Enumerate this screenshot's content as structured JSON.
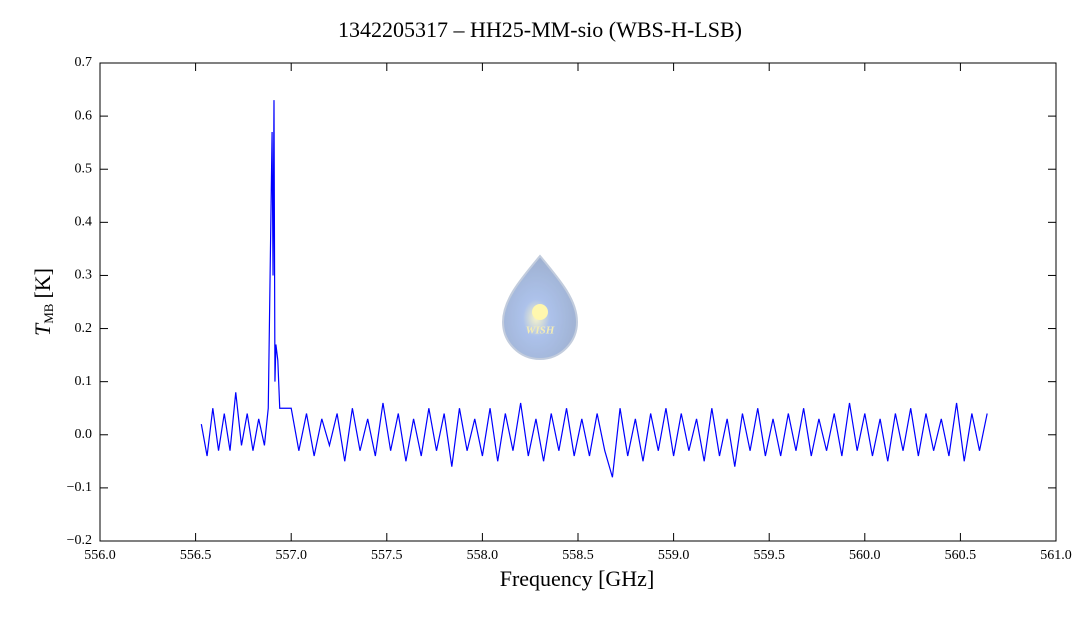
{
  "chart_data": {
    "type": "line",
    "title": "1342205317 – HH25-MM-sio (WBS-H-LSB)",
    "x_label": "Frequency [GHz]",
    "y_label": {
      "symbol": "T",
      "subscript": "MB",
      "unit": "[K]"
    },
    "logo_text": "WISH",
    "xlim": [
      556,
      561
    ],
    "xticks": [
      {
        "value": 556,
        "label": "556.0"
      },
      {
        "value": 556.5,
        "label": "556.5"
      },
      {
        "value": 557,
        "label": "557.0"
      },
      {
        "value": 557.5,
        "label": "557.5"
      },
      {
        "value": 558,
        "label": "558.0"
      },
      {
        "value": 558.5,
        "label": "558.5"
      },
      {
        "value": 559,
        "label": "559.0"
      },
      {
        "value": 559.5,
        "label": "559.5"
      },
      {
        "value": 560,
        "label": "560.0"
      },
      {
        "value": 560.5,
        "label": "560.5"
      },
      {
        "value": 561,
        "label": "561.0"
      }
    ],
    "ylim": [
      -0.2,
      0.7
    ],
    "yticks": [
      {
        "value": -0.2,
        "label": "−0.2"
      },
      {
        "value": -0.1,
        "label": "−0.1"
      },
      {
        "value": 0,
        "label": "0.0"
      },
      0.1,
      0.2,
      0.3,
      0.4,
      0.5,
      0.6,
      0.7
    ],
    "x": [
      556.53,
      556.56,
      556.59,
      556.62,
      556.65,
      556.68,
      556.71,
      556.74,
      556.77,
      556.8,
      556.83,
      556.86,
      556.88,
      556.9,
      556.905,
      556.91,
      556.915,
      556.92,
      556.93,
      556.94,
      557.0,
      557.04,
      557.08,
      557.12,
      557.16,
      557.2,
      557.24,
      557.28,
      557.32,
      557.36,
      557.4,
      557.44,
      557.48,
      557.52,
      557.56,
      557.6,
      557.64,
      557.68,
      557.72,
      557.76,
      557.8,
      557.84,
      557.88,
      557.92,
      557.96,
      558.0,
      558.04,
      558.08,
      558.12,
      558.16,
      558.2,
      558.24,
      558.28,
      558.32,
      558.36,
      558.4,
      558.44,
      558.48,
      558.52,
      558.56,
      558.6,
      558.64,
      558.68,
      558.72,
      558.76,
      558.8,
      558.84,
      558.88,
      558.92,
      558.96,
      559.0,
      559.04,
      559.08,
      559.12,
      559.16,
      559.2,
      559.24,
      559.28,
      559.32,
      559.36,
      559.4,
      559.44,
      559.48,
      559.52,
      559.56,
      559.6,
      559.64,
      559.68,
      559.72,
      559.76,
      559.8,
      559.84,
      559.88,
      559.92,
      559.96,
      560.0,
      560.04,
      560.08,
      560.12,
      560.16,
      560.2,
      560.24,
      560.28,
      560.32,
      560.36,
      560.4,
      560.44,
      560.48,
      560.52,
      560.56,
      560.6,
      560.64
    ],
    "series": [
      {
        "color": "#0000ff",
        "values": [
          0.02,
          -0.04,
          0.05,
          -0.03,
          0.04,
          -0.03,
          0.08,
          -0.02,
          0.04,
          -0.03,
          0.03,
          -0.02,
          0.05,
          0.57,
          0.3,
          0.63,
          0.1,
          0.17,
          0.14,
          0.05,
          0.05,
          -0.03,
          0.04,
          -0.04,
          0.03,
          -0.02,
          0.04,
          -0.05,
          0.05,
          -0.03,
          0.03,
          -0.04,
          0.06,
          -0.03,
          0.04,
          -0.05,
          0.03,
          -0.04,
          0.05,
          -0.03,
          0.04,
          -0.06,
          0.05,
          -0.03,
          0.03,
          -0.04,
          0.05,
          -0.05,
          0.04,
          -0.03,
          0.06,
          -0.04,
          0.03,
          -0.05,
          0.04,
          -0.03,
          0.05,
          -0.04,
          0.03,
          -0.04,
          0.04,
          -0.03,
          -0.08,
          0.05,
          -0.04,
          0.03,
          -0.05,
          0.04,
          -0.03,
          0.05,
          -0.04,
          0.04,
          -0.03,
          0.03,
          -0.05,
          0.05,
          -0.04,
          0.03,
          -0.06,
          0.04,
          -0.03,
          0.05,
          -0.04,
          0.03,
          -0.04,
          0.04,
          -0.03,
          0.05,
          -0.04,
          0.03,
          -0.03,
          0.04,
          -0.04,
          0.06,
          -0.03,
          0.04,
          -0.04,
          0.03,
          -0.05,
          0.04,
          -0.03,
          0.05,
          -0.04,
          0.04,
          -0.03,
          0.03,
          -0.04,
          0.06,
          -0.05,
          0.04,
          -0.03,
          0.04
        ]
      }
    ]
  }
}
